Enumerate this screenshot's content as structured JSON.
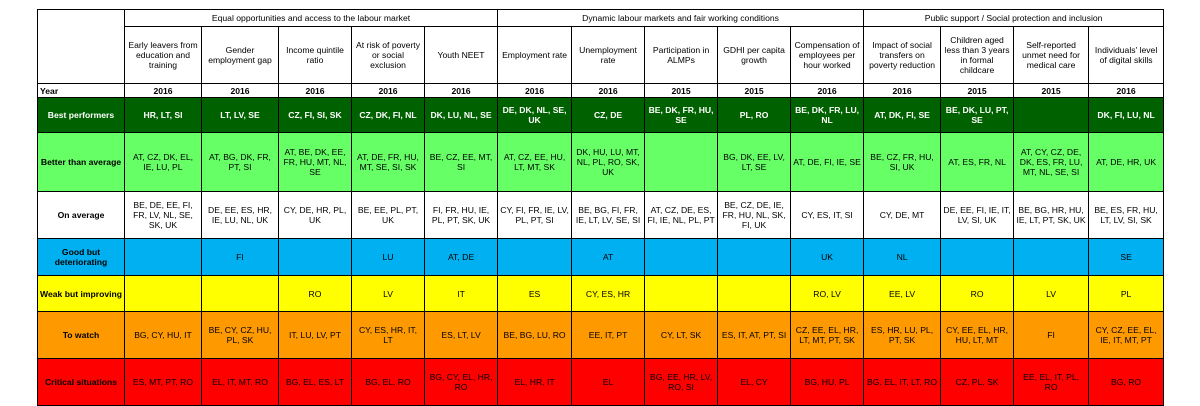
{
  "header": {
    "groups": [
      {
        "label": "Equal opportunities and access to the labour market",
        "span": 5
      },
      {
        "label": "Dynamic labour markets and fair working conditions",
        "span": 5
      },
      {
        "label": "Public support / Social protection and inclusion",
        "span": 4
      }
    ],
    "indicators": [
      "Early leavers from education and training",
      "Gender employment gap",
      "Income quintile ratio",
      "At risk of poverty or social exclusion",
      "Youth NEET",
      "Employment rate",
      "Unemployment rate",
      "Participation in ALMPs",
      "GDHI per capita growth",
      "Compensation of employees per hour worked",
      "Impact of social transfers on poverty reduction",
      "Children aged less than 3 years in formal childcare",
      "Self-reported unmet need for medical care",
      "Individuals' level of digital skills"
    ],
    "year_label": "Year",
    "years": [
      "2016",
      "2016",
      "2016",
      "2016",
      "2016",
      "2016",
      "2016",
      "2015",
      "2015",
      "2016",
      "2016",
      "2015",
      "2015",
      "2016"
    ]
  },
  "rows": [
    {
      "key": "best",
      "label": "Best performers",
      "color": "#006100",
      "cells": [
        "HR, LT, SI",
        "LT, LV, SE",
        "CZ, FI, SI, SK",
        "CZ, DK, FI, NL",
        "DK, LU, NL, SE",
        "DE, DK, NL, SE, UK",
        "CZ, DE",
        "BE, DK, FR, HU, SE",
        "PL, RO",
        "BE, DK, FR, LU, NL",
        "AT, DK, FI, SE",
        "BE, DK, LU, PT, SE",
        "",
        "DK, FI, LU, NL"
      ]
    },
    {
      "key": "better",
      "label": "Better than average",
      "color": "#66ff66",
      "cells": [
        "AT, CZ, DK, EL, IE, LU, PL",
        "AT, BG, DK, FR, PT, SI",
        "AT, BE, DK, EE, FR, HU, MT, NL, SE",
        "AT, DE, FR, HU, MT, SE, SI, SK",
        "BE, CZ, EE, MT, SI",
        "AT, CZ, EE, HU, LT, MT, SK",
        "DK, HU, LU, MT, NL, PL, RO, SK, UK",
        "",
        "BG, DK, EE, LV, LT, SE",
        "AT, DE, FI, IE, SE",
        "BE, CZ, FR, HU, SI, UK",
        "AT, ES, FR, NL",
        "AT, CY, CZ, DE, DK, ES, FR, LU, MT, NL, SE, SI",
        "AT, DE, HR, UK"
      ]
    },
    {
      "key": "avg",
      "label": "On average",
      "color": "#ffffff",
      "cells": [
        "BE, DE, EE, FI, FR, LV, NL, SE, SK, UK",
        "DE, EE, ES, HR, IE, LU, NL, UK",
        "CY, DE, HR, PL, UK",
        "BE, EE, PL, PT, UK",
        "FI, FR, HU, IE, PL, PT, SK, UK",
        "CY, FI, FR, IE, LV, PL, PT, SI",
        "BE, BG, FI, FR, IE, LT, LV, SE, SI",
        "AT, CZ, DE, ES, FI, IE, NL, PL, PT",
        "BE, CZ, DE, IE, FR, HU, NL, SK, FI, UK",
        "CY, ES, IT, SI",
        "CY, DE, MT",
        "DE, EE, FI, IE, IT, LV, SI, UK",
        "BE, BG, HR, HU, IE, LT, PT, SK, UK",
        "BE, ES, FR, HU, LT, LV, SI, SK"
      ]
    },
    {
      "key": "good",
      "label": "Good but deteriorating",
      "color": "#00b0f0",
      "cells": [
        "",
        "FI",
        "",
        "LU",
        "AT, DE",
        "",
        "AT",
        "",
        "",
        "UK",
        "NL",
        "",
        "",
        "SE"
      ]
    },
    {
      "key": "weak",
      "label": "Weak but improving",
      "color": "#ffff00",
      "cells": [
        "",
        "",
        "RO",
        "LV",
        "IT",
        "ES",
        "CY, ES, HR",
        "",
        "",
        "RO, LV",
        "EE, LV",
        "RO",
        "LV",
        "PL"
      ]
    },
    {
      "key": "watch",
      "label": "To watch",
      "color": "#ff9900",
      "cells": [
        "BG, CY, HU, IT",
        "BE, CY, CZ, HU, PL, SK",
        "IT, LU, LV, PT",
        "CY, ES, HR, IT, LT",
        "ES, LT, LV",
        "BE, BG, LU, RO",
        "EE, IT, PT",
        "CY, LT, SK",
        "ES, IT, AT, PT, SI",
        "CZ, EE, EL, HR, LT, MT, PT, SK",
        "ES, HR, LU, PL, PT, SK",
        "CY, EE, EL, HR, HU, LT, MT",
        "FI",
        "CY, CZ, EE, EL, IE, IT, MT, PT"
      ]
    },
    {
      "key": "crit",
      "label": "Critical situations",
      "color": "#ff0000",
      "cells": [
        "ES, MT, PT, RO",
        "EL, IT, MT, RO",
        "BG, EL, ES, LT",
        "BG, EL, RO",
        "BG, CY, EL, HR, RO",
        "EL, HR, IT",
        "EL",
        "BG, EE, HR, LV, RO, SI",
        "EL, CY",
        "BG, HU, PL",
        "BG, EL, IT, LT, RO",
        "CZ, PL, SK",
        "EE, EL, IT, PL, RO",
        "BG, RO"
      ]
    }
  ]
}
